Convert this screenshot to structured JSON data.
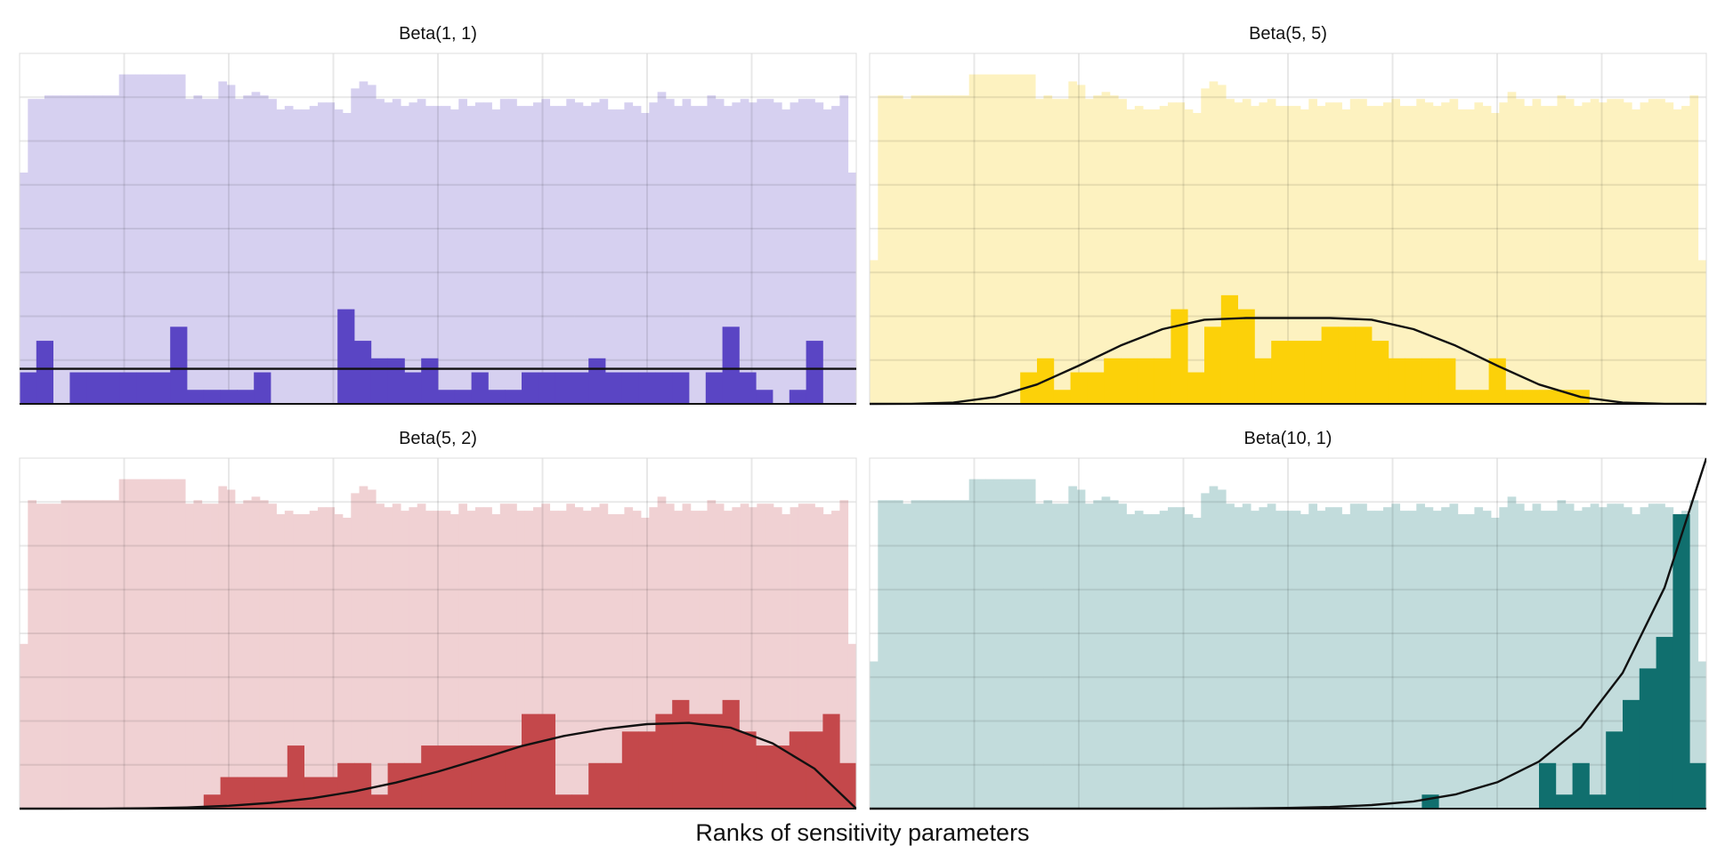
{
  "figure": {
    "xlabel": "Ranks of sensitivity parameters"
  },
  "chart_data": [
    {
      "type": "bar",
      "title": "Beta(1, 1)",
      "color": "#5a45c4",
      "background_color": "#d6d0f0",
      "grid": true,
      "xlim": [
        0,
        1
      ],
      "background_heights": [
        0.66,
        0.87,
        0.87,
        0.88,
        0.88,
        0.88,
        0.88,
        0.88,
        0.88,
        0.88,
        0.88,
        0.88,
        0.94,
        0.94,
        0.94,
        0.94,
        0.94,
        0.94,
        0.94,
        0.94,
        0.87,
        0.88,
        0.87,
        0.87,
        0.92,
        0.91,
        0.87,
        0.88,
        0.89,
        0.88,
        0.87,
        0.84,
        0.85,
        0.84,
        0.84,
        0.85,
        0.86,
        0.86,
        0.84,
        0.83,
        0.9,
        0.92,
        0.91,
        0.87,
        0.86,
        0.87,
        0.85,
        0.86,
        0.87,
        0.85,
        0.85,
        0.85,
        0.84,
        0.87,
        0.85,
        0.86,
        0.86,
        0.84,
        0.87,
        0.87,
        0.85,
        0.85,
        0.86,
        0.87,
        0.85,
        0.85,
        0.87,
        0.86,
        0.85,
        0.86,
        0.87,
        0.84,
        0.84,
        0.86,
        0.85,
        0.83,
        0.86,
        0.89,
        0.87,
        0.85,
        0.87,
        0.85,
        0.85,
        0.88,
        0.87,
        0.85,
        0.86,
        0.87,
        0.86,
        0.87,
        0.87,
        0.86,
        0.84,
        0.86,
        0.87,
        0.87,
        0.86,
        0.84,
        0.85,
        0.88,
        0.66
      ],
      "hist_heights": [
        0.09,
        0.18,
        0.0,
        0.09,
        0.09,
        0.09,
        0.09,
        0.09,
        0.09,
        0.22,
        0.04,
        0.04,
        0.04,
        0.04,
        0.09,
        0.0,
        0.0,
        0.0,
        0.0,
        0.27,
        0.18,
        0.13,
        0.13,
        0.09,
        0.13,
        0.04,
        0.04,
        0.09,
        0.04,
        0.04,
        0.09,
        0.09,
        0.09,
        0.09,
        0.13,
        0.09,
        0.09,
        0.09,
        0.09,
        0.09,
        0.0,
        0.09,
        0.22,
        0.09,
        0.04,
        0.0,
        0.04,
        0.18,
        0.0,
        0.0
      ],
      "curve_x": [
        0,
        0.05,
        0.1,
        0.15,
        0.2,
        0.25,
        0.3,
        0.35,
        0.4,
        0.45,
        0.5,
        0.55,
        0.6,
        0.65,
        0.7,
        0.75,
        0.8,
        0.85,
        0.9,
        0.95,
        1
      ],
      "curve_y": [
        1,
        1,
        1,
        1,
        1,
        1,
        1,
        1,
        1,
        1,
        1,
        1,
        1,
        1,
        1,
        1,
        1,
        1,
        1,
        1,
        1
      ],
      "curve_scale": 0.1
    },
    {
      "type": "bar",
      "title": "Beta(5, 5)",
      "color": "#fcd109",
      "background_color": "#fdf2c0",
      "grid": true,
      "xlim": [
        0,
        1
      ],
      "background_heights": [
        0.41,
        0.88,
        0.88,
        0.88,
        0.87,
        0.88,
        0.88,
        0.88,
        0.88,
        0.88,
        0.88,
        0.88,
        0.94,
        0.94,
        0.94,
        0.94,
        0.94,
        0.94,
        0.94,
        0.94,
        0.87,
        0.88,
        0.87,
        0.87,
        0.92,
        0.91,
        0.87,
        0.88,
        0.89,
        0.88,
        0.87,
        0.84,
        0.85,
        0.84,
        0.84,
        0.85,
        0.86,
        0.86,
        0.84,
        0.83,
        0.9,
        0.92,
        0.91,
        0.87,
        0.86,
        0.87,
        0.85,
        0.86,
        0.87,
        0.85,
        0.85,
        0.85,
        0.84,
        0.87,
        0.85,
        0.86,
        0.86,
        0.84,
        0.87,
        0.87,
        0.85,
        0.85,
        0.86,
        0.87,
        0.85,
        0.85,
        0.87,
        0.86,
        0.85,
        0.86,
        0.87,
        0.84,
        0.84,
        0.86,
        0.85,
        0.83,
        0.86,
        0.89,
        0.87,
        0.85,
        0.87,
        0.85,
        0.85,
        0.88,
        0.87,
        0.85,
        0.86,
        0.87,
        0.86,
        0.87,
        0.87,
        0.86,
        0.84,
        0.86,
        0.87,
        0.87,
        0.86,
        0.84,
        0.85,
        0.88,
        0.41
      ],
      "hist_heights": [
        0.0,
        0.0,
        0.0,
        0.0,
        0.0,
        0.0,
        0.0,
        0.0,
        0.0,
        0.09,
        0.13,
        0.04,
        0.09,
        0.09,
        0.13,
        0.13,
        0.13,
        0.13,
        0.27,
        0.09,
        0.22,
        0.31,
        0.27,
        0.13,
        0.18,
        0.18,
        0.18,
        0.22,
        0.22,
        0.22,
        0.18,
        0.13,
        0.13,
        0.13,
        0.13,
        0.04,
        0.04,
        0.13,
        0.04,
        0.04,
        0.04,
        0.04,
        0.04,
        0.0,
        0.0,
        0.0,
        0.0,
        0.0,
        0.0,
        0.0
      ],
      "curve_x": [
        0,
        0.05,
        0.1,
        0.15,
        0.2,
        0.25,
        0.3,
        0.35,
        0.4,
        0.45,
        0.5,
        0.55,
        0.6,
        0.65,
        0.7,
        0.75,
        0.8,
        0.85,
        0.9,
        0.95,
        1
      ],
      "curve_y": [
        0,
        0.00058,
        0.0145,
        0.08,
        0.226,
        0.445,
        0.68,
        0.87,
        0.98,
        1.0,
        1.0,
        1.0,
        0.98,
        0.87,
        0.68,
        0.445,
        0.226,
        0.08,
        0.0145,
        0.00058,
        0
      ],
      "curve_scale": 0.245
    },
    {
      "type": "bar",
      "title": "Beta(5, 2)",
      "color": "#c4484b",
      "background_color": "#f0d1d3",
      "grid": true,
      "xlim": [
        0,
        1
      ],
      "background_heights": [
        0.47,
        0.88,
        0.87,
        0.87,
        0.87,
        0.88,
        0.88,
        0.88,
        0.88,
        0.88,
        0.88,
        0.88,
        0.94,
        0.94,
        0.94,
        0.94,
        0.94,
        0.94,
        0.94,
        0.94,
        0.87,
        0.88,
        0.87,
        0.87,
        0.92,
        0.91,
        0.87,
        0.88,
        0.89,
        0.88,
        0.87,
        0.84,
        0.85,
        0.84,
        0.84,
        0.85,
        0.86,
        0.86,
        0.84,
        0.83,
        0.9,
        0.92,
        0.91,
        0.87,
        0.86,
        0.87,
        0.85,
        0.86,
        0.87,
        0.85,
        0.85,
        0.85,
        0.84,
        0.87,
        0.85,
        0.86,
        0.86,
        0.84,
        0.87,
        0.87,
        0.85,
        0.85,
        0.86,
        0.87,
        0.85,
        0.85,
        0.87,
        0.86,
        0.85,
        0.86,
        0.87,
        0.84,
        0.84,
        0.86,
        0.85,
        0.83,
        0.86,
        0.89,
        0.87,
        0.85,
        0.87,
        0.85,
        0.85,
        0.88,
        0.87,
        0.85,
        0.86,
        0.87,
        0.86,
        0.87,
        0.87,
        0.86,
        0.84,
        0.86,
        0.87,
        0.87,
        0.86,
        0.84,
        0.85,
        0.88,
        0.47
      ],
      "hist_heights": [
        0.0,
        0.0,
        0.0,
        0.0,
        0.0,
        0.0,
        0.0,
        0.0,
        0.0,
        0.0,
        0.0,
        0.04,
        0.09,
        0.09,
        0.09,
        0.09,
        0.18,
        0.09,
        0.09,
        0.13,
        0.13,
        0.04,
        0.13,
        0.13,
        0.18,
        0.18,
        0.18,
        0.18,
        0.18,
        0.18,
        0.27,
        0.27,
        0.04,
        0.04,
        0.13,
        0.13,
        0.22,
        0.22,
        0.27,
        0.31,
        0.27,
        0.27,
        0.31,
        0.22,
        0.18,
        0.18,
        0.22,
        0.22,
        0.27,
        0.13
      ],
      "curve_x": [
        0,
        0.05,
        0.1,
        0.15,
        0.2,
        0.25,
        0.3,
        0.35,
        0.4,
        0.45,
        0.5,
        0.55,
        0.6,
        0.65,
        0.7,
        0.75,
        0.8,
        0.85,
        0.9,
        0.95,
        1
      ],
      "curve_y": [
        0,
        7e-05,
        0.0011,
        0.0052,
        0.0162,
        0.0389,
        0.0794,
        0.143,
        0.2366,
        0.3589,
        0.51,
        0.6816,
        0.8618,
        1.0,
        1.1,
        1.165,
        1.182,
        1.114,
        0.9,
        0.552,
        0
      ],
      "curve_scale": 0.207
    },
    {
      "type": "bar",
      "title": "Beta(10, 1)",
      "color": "#106f6e",
      "background_color": "#c2dcdc",
      "grid": true,
      "xlim": [
        0,
        1
      ],
      "background_heights": [
        0.42,
        0.88,
        0.88,
        0.88,
        0.87,
        0.88,
        0.88,
        0.88,
        0.88,
        0.88,
        0.88,
        0.88,
        0.94,
        0.94,
        0.94,
        0.94,
        0.94,
        0.94,
        0.94,
        0.94,
        0.87,
        0.88,
        0.87,
        0.87,
        0.92,
        0.91,
        0.87,
        0.88,
        0.89,
        0.88,
        0.87,
        0.84,
        0.85,
        0.84,
        0.84,
        0.85,
        0.86,
        0.86,
        0.84,
        0.83,
        0.9,
        0.92,
        0.91,
        0.87,
        0.86,
        0.87,
        0.85,
        0.86,
        0.87,
        0.85,
        0.85,
        0.85,
        0.84,
        0.87,
        0.85,
        0.86,
        0.86,
        0.84,
        0.87,
        0.87,
        0.85,
        0.85,
        0.86,
        0.87,
        0.85,
        0.85,
        0.87,
        0.86,
        0.85,
        0.86,
        0.87,
        0.84,
        0.84,
        0.86,
        0.85,
        0.83,
        0.86,
        0.89,
        0.87,
        0.85,
        0.87,
        0.85,
        0.85,
        0.88,
        0.87,
        0.85,
        0.86,
        0.87,
        0.86,
        0.87,
        0.87,
        0.86,
        0.84,
        0.86,
        0.87,
        0.87,
        0.86,
        0.84,
        0.85,
        0.88,
        0.42
      ],
      "hist_heights": [
        0.0,
        0.0,
        0.0,
        0.0,
        0.0,
        0.0,
        0.0,
        0.0,
        0.0,
        0.0,
        0.0,
        0.0,
        0.0,
        0.0,
        0.0,
        0.0,
        0.0,
        0.0,
        0.0,
        0.0,
        0.0,
        0.0,
        0.0,
        0.0,
        0.0,
        0.0,
        0.0,
        0.0,
        0.0,
        0.0,
        0.0,
        0.0,
        0.0,
        0.04,
        0.0,
        0.0,
        0.0,
        0.0,
        0.0,
        0.0,
        0.13,
        0.04,
        0.13,
        0.04,
        0.22,
        0.31,
        0.4,
        0.49,
        0.84,
        0.13
      ],
      "curve_x": [
        0,
        0.05,
        0.1,
        0.15,
        0.2,
        0.25,
        0.3,
        0.35,
        0.4,
        0.45,
        0.5,
        0.55,
        0.6,
        0.65,
        0.7,
        0.75,
        0.8,
        0.85,
        0.9,
        0.95,
        1
      ],
      "curve_y": [
        0,
        0,
        0,
        0,
        0,
        0,
        0.0002,
        0.0008,
        0.0026,
        0.0076,
        0.0195,
        0.046,
        0.1008,
        0.2066,
        0.4035,
        0.751,
        1.342,
        2.316,
        3.874,
        6.302,
        10
      ],
      "curve_scale": 0.1
    }
  ]
}
